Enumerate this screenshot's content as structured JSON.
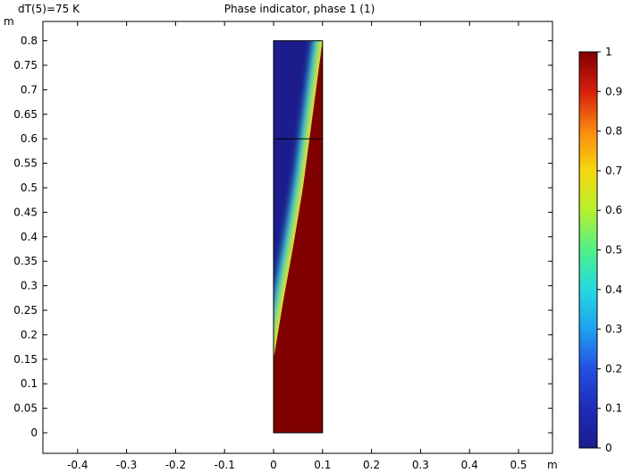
{
  "header": {
    "parameter_label": "dT(5)=75 K",
    "plot_title": "Phase indicator, phase 1 (1)"
  },
  "chart_data": {
    "type": "heatmap",
    "title": "Phase indicator, phase 1 (1)",
    "xlabel": "m",
    "ylabel": "m",
    "xlim": [
      -0.48,
      0.57
    ],
    "ylim": [
      -0.04,
      0.82
    ],
    "x_ticks": [
      "-0.4",
      "-0.3",
      "-0.2",
      "-0.1",
      "0",
      "0.1",
      "0.2",
      "0.3",
      "0.4",
      "0.5"
    ],
    "y_ticks": [
      "0",
      "0.05",
      "0.1",
      "0.15",
      "0.2",
      "0.25",
      "0.3",
      "0.35",
      "0.4",
      "0.45",
      "0.5",
      "0.55",
      "0.6",
      "0.65",
      "0.7",
      "0.75",
      "0.8"
    ],
    "domain": {
      "x": [
        0,
        0.1
      ],
      "y": [
        0,
        0.8
      ]
    },
    "internal_boundary_y": 0.6,
    "interface": {
      "description_values": "phase 1 = 1 below/right of interface, 0 above/left",
      "points": [
        [
          0.0,
          0.15
        ],
        [
          0.02,
          0.27
        ],
        [
          0.04,
          0.38
        ],
        [
          0.06,
          0.5
        ],
        [
          0.08,
          0.65
        ],
        [
          0.1,
          0.8
        ]
      ]
    },
    "colorbar": {
      "min": 0,
      "max": 1,
      "ticks": [
        "0",
        "0.1",
        "0.2",
        "0.3",
        "0.4",
        "0.5",
        "0.6",
        "0.7",
        "0.8",
        "0.9",
        "1"
      ],
      "colormap": "rainbow (dark blue to dark red)"
    },
    "colors": {
      "low": "#1c1c8c",
      "high": "#800000",
      "frame": "#000000"
    }
  }
}
